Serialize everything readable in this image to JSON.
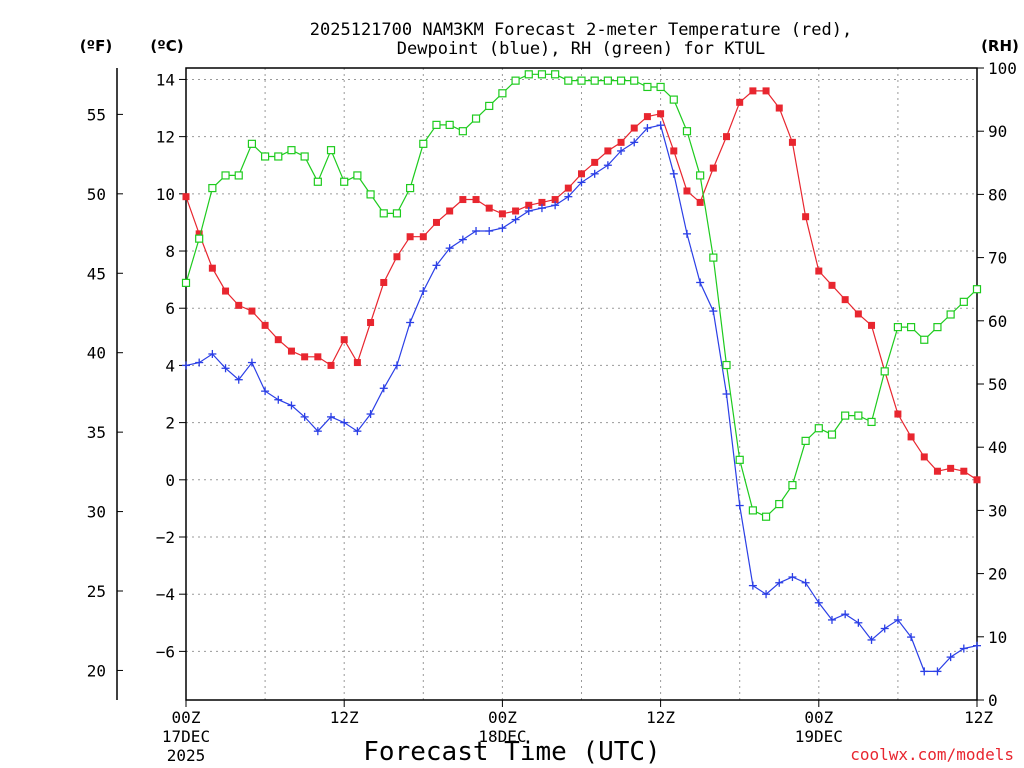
{
  "chart_data": {
    "type": "line",
    "title_line1": "2025121700 NAM3KM Forecast 2-meter Temperature (red),",
    "title_line2": "Dewpoint (blue), RH (green) for KTUL",
    "unit_f": "(ºF)",
    "unit_c": "(ºC)",
    "unit_rh": "(RH)",
    "xlabel": "Forecast Time (UTC)",
    "credit": "coolwx.com/models",
    "xlim": [
      0,
      60
    ],
    "ylim_c": [
      -7.7,
      14.4
    ],
    "ylim_rh": [
      0,
      100
    ],
    "x_ticks": [
      {
        "x": 0,
        "label": "00Z",
        "sub1": "17DEC",
        "sub2": "2025"
      },
      {
        "x": 12,
        "label": "12Z",
        "sub1": "",
        "sub2": ""
      },
      {
        "x": 24,
        "label": "00Z",
        "sub1": "18DEC",
        "sub2": ""
      },
      {
        "x": 36,
        "label": "12Z",
        "sub1": "",
        "sub2": ""
      },
      {
        "x": 48,
        "label": "00Z",
        "sub1": "19DEC",
        "sub2": ""
      },
      {
        "x": 60,
        "label": "12Z",
        "sub1": "",
        "sub2": ""
      }
    ],
    "c_ticks": [
      14,
      12,
      10,
      8,
      6,
      4,
      2,
      0,
      -2,
      -4,
      -6
    ],
    "c_tick_labels": [
      "14",
      "12",
      "10",
      "8",
      "6",
      "4",
      "2",
      "0",
      "−2",
      "−4",
      "−6"
    ],
    "f_ticks": [
      55,
      50,
      45,
      40,
      35,
      30,
      25,
      20
    ],
    "f_tick_labels": [
      "55",
      "50",
      "45",
      "40",
      "35",
      "30",
      "25",
      "20"
    ],
    "rh_ticks": [
      100,
      90,
      80,
      70,
      60,
      50,
      40,
      30,
      20,
      10,
      0
    ],
    "rh_tick_labels": [
      "100",
      "90",
      "80",
      "70",
      "60",
      "50",
      "40",
      "30",
      "20",
      "10",
      "0"
    ],
    "series": [
      {
        "name": "Temperature (red)",
        "axis": "c",
        "color": "#e8262f",
        "marker": "square-filled",
        "values": [
          9.9,
          8.6,
          7.4,
          6.6,
          6.1,
          5.9,
          5.4,
          4.9,
          4.5,
          4.3,
          4.3,
          4.0,
          4.9,
          4.1,
          5.5,
          6.9,
          7.8,
          8.5,
          8.5,
          9.0,
          9.4,
          9.8,
          9.8,
          9.5,
          9.3,
          9.4,
          9.6,
          9.7,
          9.8,
          10.2,
          10.7,
          11.1,
          11.5,
          11.8,
          12.3,
          12.7,
          12.8,
          11.5,
          10.1,
          9.7,
          10.9,
          12.0,
          13.2,
          13.6,
          13.6,
          13.0,
          11.8,
          9.2,
          7.3,
          6.8,
          6.3,
          5.8,
          5.4,
          3.8,
          2.3,
          1.5,
          0.8,
          0.3,
          0.4,
          0.3,
          0.0
        ]
      },
      {
        "name": "Dewpoint (blue)",
        "axis": "c",
        "color": "#2b3fe6",
        "marker": "plus",
        "values": [
          4.0,
          4.1,
          4.4,
          3.9,
          3.5,
          4.1,
          3.1,
          2.8,
          2.6,
          2.2,
          1.7,
          2.2,
          2.0,
          1.7,
          2.3,
          3.2,
          4.0,
          5.5,
          6.6,
          7.5,
          8.1,
          8.4,
          8.7,
          8.7,
          8.8,
          9.1,
          9.4,
          9.5,
          9.6,
          9.9,
          10.4,
          10.7,
          11.0,
          11.5,
          11.8,
          12.3,
          12.4,
          10.7,
          8.6,
          6.9,
          5.9,
          3.0,
          -0.9,
          -3.7,
          -4.0,
          -3.6,
          -3.4,
          -3.6,
          -4.3,
          -4.9,
          -4.7,
          -5.0,
          -5.6,
          -5.2,
          -4.9,
          -5.5,
          -6.7,
          -6.7,
          -6.2,
          -5.9,
          -5.8
        ]
      },
      {
        "name": "RH (green)",
        "axis": "rh",
        "color": "#1ecb1e",
        "marker": "square-open",
        "values": [
          66,
          73,
          81,
          83,
          83,
          88,
          86,
          86,
          87,
          86,
          82,
          87,
          82,
          83,
          80,
          77,
          77,
          81,
          88,
          91,
          91,
          90,
          92,
          94,
          96,
          98,
          99,
          99,
          99,
          98,
          98,
          98,
          98,
          98,
          98,
          97,
          97,
          95,
          90,
          83,
          70,
          53,
          38,
          30,
          29,
          31,
          34,
          41,
          43,
          42,
          45,
          45,
          44,
          52,
          59,
          59,
          57,
          59,
          61,
          63,
          65
        ]
      }
    ]
  }
}
